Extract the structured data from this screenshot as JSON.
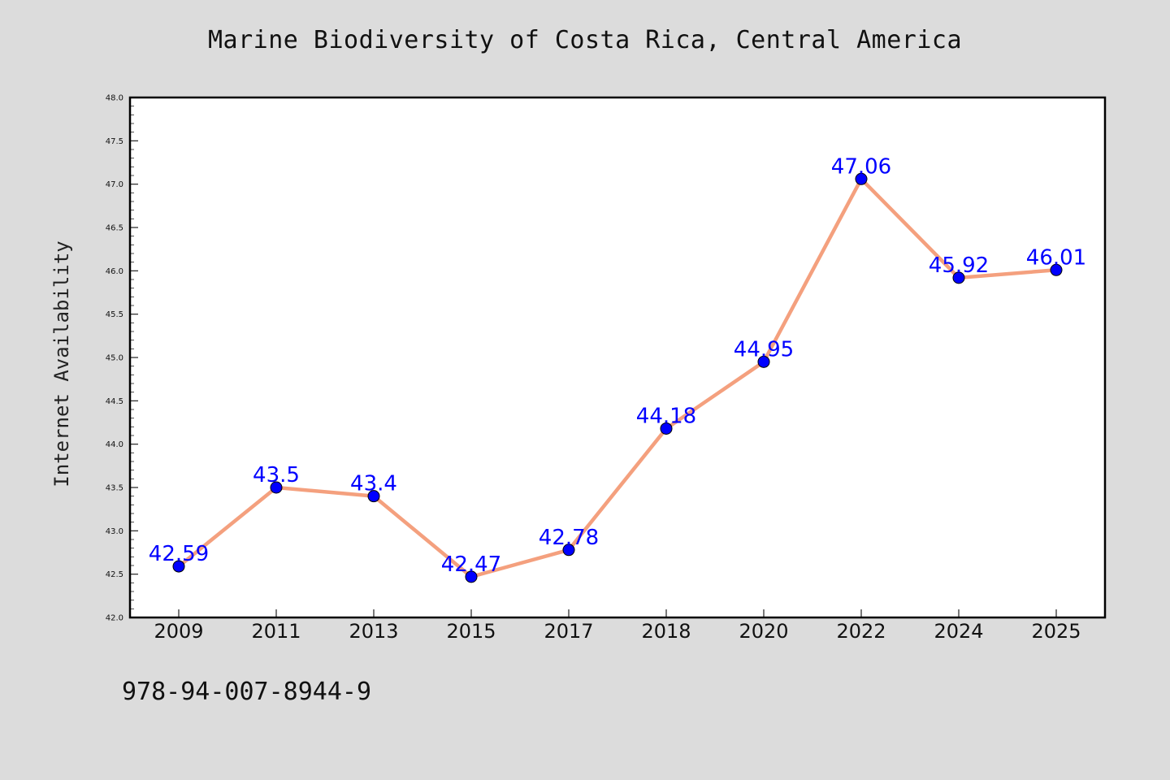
{
  "colors": {
    "background": "#dcdcdc",
    "plot_background": "#ffffff",
    "line": "#f4a07e",
    "marker": "#0000ff",
    "label": "#0000ff"
  },
  "footer_code": "978-94-007-8944-9",
  "chart_data": {
    "type": "line",
    "title": "Marine Biodiversity of Costa Rica, Central America",
    "xlabel": "",
    "ylabel": "Internet Availability",
    "categories": [
      "2009",
      "2011",
      "2013",
      "2015",
      "2017",
      "2018",
      "2020",
      "2022",
      "2024",
      "2025"
    ],
    "series": [
      {
        "values": [
          42.59,
          43.5,
          43.4,
          42.47,
          42.78,
          44.18,
          44.95,
          47.06,
          45.92,
          46.01
        ],
        "labels": [
          "42.59",
          "43.5",
          "43.4",
          "42.47",
          "42.78",
          "44.18",
          "44.95",
          "47.06",
          "45.92",
          "46.01"
        ]
      }
    ],
    "ylim": [
      42.0,
      48.0
    ],
    "yticks": [
      "42.0",
      "42.5",
      "43.0",
      "43.5",
      "44.0",
      "44.5",
      "45.0",
      "45.5",
      "46.0",
      "46.5",
      "47.0",
      "47.5",
      "48.0"
    ],
    "grid": false,
    "legend": "none"
  }
}
